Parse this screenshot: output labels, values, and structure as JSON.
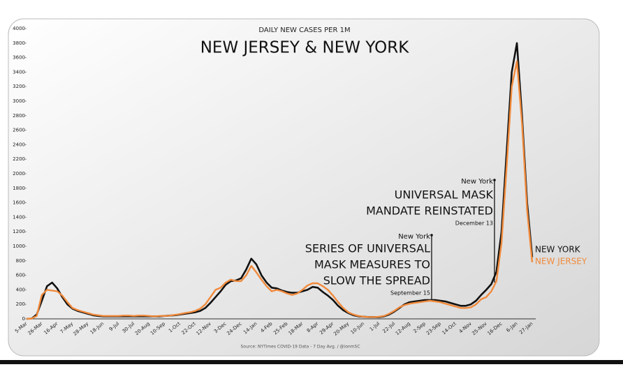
{
  "chart_data": {
    "type": "line",
    "subtitle": "DAILY NEW CASES PER 1M",
    "title": "NEW JERSEY & NEW YORK",
    "source": "Source: NYTimes COVID-19 Data - 7 Day Avg. / @ionmSC",
    "categories": [
      "5-Mar",
      null,
      null,
      "26-Mar",
      null,
      null,
      "16-Apr",
      null,
      null,
      "7-May",
      null,
      null,
      "28-May",
      null,
      null,
      "18-Jun",
      null,
      null,
      "9-Jul",
      null,
      null,
      "30-Jul",
      null,
      null,
      "20-Aug",
      null,
      null,
      "10-Sep",
      null,
      null,
      "1-Oct",
      null,
      null,
      "22-Oct",
      null,
      null,
      "12-Nov",
      null,
      null,
      "3-Dec",
      null,
      null,
      "24-Dec",
      null,
      null,
      "14-Jan",
      null,
      null,
      "4-Feb",
      null,
      null,
      "25-Feb",
      null,
      null,
      "18-Mar",
      null,
      null,
      "8-Apr",
      null,
      null,
      "29-Apr",
      null,
      null,
      "20-May",
      null,
      null,
      "10-Jun",
      null,
      null,
      "1-Jul",
      null,
      null,
      "22-Jul",
      null,
      null,
      "12-Aug",
      null,
      null,
      "2-Sep",
      null,
      null,
      "23-Sep",
      null,
      null,
      "14-Oct",
      null,
      null,
      "4-Nov",
      null,
      null,
      "25-Nov",
      null,
      null,
      "16-Dec",
      null,
      null,
      "6-Jan",
      null,
      null,
      "27-Jan"
    ],
    "series": [
      {
        "name": "NEW YORK",
        "color": "#111111",
        "values": [
          0,
          5,
          60,
          250,
          450,
          500,
          420,
          300,
          200,
          140,
          110,
          90,
          70,
          50,
          40,
          35,
          35,
          35,
          35,
          35,
          35,
          35,
          35,
          35,
          35,
          35,
          35,
          40,
          45,
          50,
          60,
          70,
          80,
          90,
          110,
          150,
          220,
          300,
          380,
          470,
          520,
          530,
          560,
          680,
          830,
          750,
          600,
          500,
          430,
          420,
          390,
          370,
          360,
          360,
          380,
          400,
          440,
          430,
          370,
          320,
          260,
          180,
          120,
          80,
          50,
          35,
          30,
          25,
          25,
          25,
          35,
          60,
          100,
          150,
          200,
          230,
          240,
          250,
          260,
          260,
          260,
          250,
          240,
          220,
          200,
          180,
          180,
          200,
          250,
          330,
          400,
          480,
          650,
          1200,
          2300,
          3400,
          3800,
          2800,
          1600,
          850
        ]
      },
      {
        "name": "NEW JERSEY",
        "color": "#f08a3c",
        "values": [
          0,
          5,
          40,
          330,
          400,
          390,
          380,
          320,
          230,
          150,
          120,
          100,
          80,
          60,
          50,
          40,
          40,
          40,
          40,
          45,
          45,
          40,
          45,
          45,
          40,
          35,
          40,
          40,
          45,
          55,
          65,
          80,
          90,
          110,
          140,
          200,
          300,
          400,
          430,
          500,
          540,
          520,
          520,
          600,
          730,
          640,
          540,
          450,
          380,
          400,
          380,
          350,
          330,
          350,
          400,
          460,
          490,
          490,
          450,
          400,
          320,
          230,
          150,
          90,
          60,
          40,
          30,
          25,
          25,
          30,
          40,
          70,
          110,
          160,
          190,
          210,
          220,
          230,
          240,
          250,
          240,
          230,
          210,
          190,
          170,
          150,
          150,
          160,
          200,
          270,
          300,
          380,
          520,
          1050,
          2100,
          3200,
          3550,
          2700,
          1500,
          780
        ]
      }
    ],
    "ylim": [
      0,
      4000
    ],
    "yticks": [
      0,
      200,
      400,
      600,
      800,
      1000,
      1200,
      1400,
      1600,
      1800,
      2000,
      2200,
      2400,
      2600,
      2800,
      3000,
      3200,
      3400,
      3600,
      3800,
      4000
    ],
    "annotations": [
      {
        "tag": "New York",
        "text": [
          "SERIES OF UNIVERSAL",
          "MASK MEASURES TO",
          "SLOW THE SPREAD"
        ],
        "date": "September 15"
      },
      {
        "tag": "New York",
        "text": [
          "UNIVERSAL MASK",
          "MANDATE REINSTATED"
        ],
        "date": "December 13"
      }
    ]
  }
}
